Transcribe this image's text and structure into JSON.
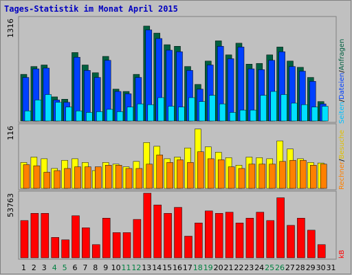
{
  "chart_data": {
    "type": "bar",
    "title": "Tages-Statistik im Monat April 2015",
    "categories": [
      "1",
      "2",
      "3",
      "4",
      "5",
      "6",
      "7",
      "8",
      "9",
      "10",
      "11",
      "12",
      "13",
      "14",
      "15",
      "16",
      "17",
      "18",
      "19",
      "20",
      "21",
      "22",
      "23",
      "24",
      "25",
      "26",
      "27",
      "28",
      "29",
      "30",
      "31"
    ],
    "weekend_days": [
      "4",
      "5",
      "11",
      "12",
      "18",
      "19",
      "25",
      "26"
    ],
    "legend": {
      "anfragen": "Anfragen",
      "dateien": "Dateien",
      "seiten": "Seiten",
      "besuche": "Besuche",
      "rechner": "Rechner",
      "kb": "kB",
      "sep": "/"
    },
    "panels": [
      {
        "max_label": "1316",
        "ymax": 1316,
        "series": [
          {
            "name": "Anfragen",
            "color": "#006040",
            "values": [
              600,
              700,
              720,
              310,
              280,
              880,
              720,
              620,
              830,
              410,
              380,
              600,
              1220,
              1130,
              980,
              960,
              700,
              470,
              770,
              1030,
              850,
              1000,
              730,
              740,
              850,
              950,
              770,
              690,
              560,
              250,
              0
            ]
          },
          {
            "name": "Dateien",
            "color": "#0040ff",
            "values": [
              560,
              670,
              680,
              270,
              240,
              820,
              650,
              560,
              780,
              380,
              350,
              560,
              1170,
              1060,
              910,
              890,
              650,
              410,
              720,
              960,
              800,
              950,
              670,
              660,
              780,
              890,
              700,
              640,
              510,
              220,
              0
            ]
          },
          {
            "name": "Seiten",
            "color": "#00e0ff",
            "values": [
              130,
              270,
              340,
              240,
              180,
              130,
              110,
              120,
              150,
              120,
              180,
              220,
              210,
              300,
              190,
              180,
              300,
              250,
              330,
              220,
              110,
              140,
              140,
              330,
              380,
              340,
              230,
              210,
              180,
              190,
              0
            ]
          }
        ]
      },
      {
        "max_label": "116",
        "ymax": 116,
        "series": [
          {
            "name": "Besuche",
            "color": "#ffff00",
            "values": [
              48,
              58,
              55,
              37,
              52,
              55,
              48,
              33,
              48,
              45,
              40,
              50,
              85,
              78,
              55,
              58,
              75,
              110,
              77,
              67,
              57,
              43,
              58,
              57,
              55,
              88,
              73,
              55,
              48,
              47,
              0
            ]
          },
          {
            "name": "Rechner",
            "color": "#ff8000",
            "values": [
              44,
              42,
              30,
              33,
              37,
              40,
              40,
              40,
              43,
              43,
              37,
              37,
              45,
              62,
              48,
              53,
              48,
              68,
              55,
              53,
              40,
              37,
              45,
              45,
              45,
              50,
              52,
              52,
              43,
              45,
              0
            ]
          }
        ]
      },
      {
        "max_label": "53763",
        "ymax": 53763,
        "series": [
          {
            "name": "kB",
            "color": "#ff0000",
            "values": [
              31000,
              37000,
              37000,
              17000,
              15000,
              35000,
              25000,
              11000,
              33000,
              21000,
              21000,
              32000,
              53763,
              44000,
              37000,
              42000,
              18000,
              29000,
              39000,
              37000,
              38000,
              29000,
              33000,
              38000,
              31000,
              50000,
              27000,
              33000,
              23000,
              11000,
              0
            ]
          }
        ]
      }
    ]
  }
}
